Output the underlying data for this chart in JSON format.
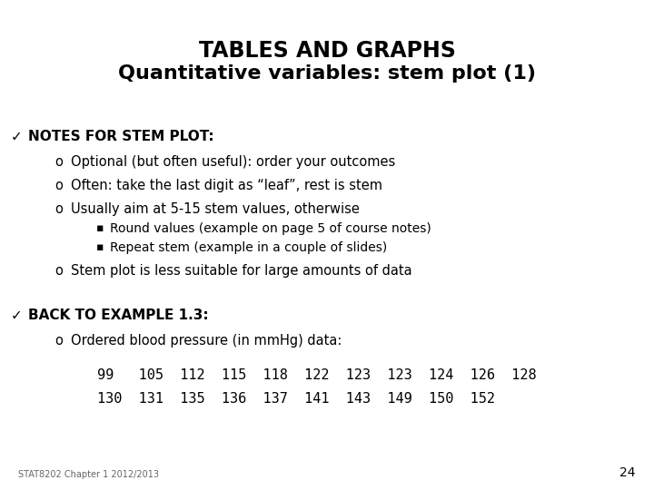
{
  "title_line1": "TABLES AND GRAPHS",
  "title_line2": "Quantitative variables: stem plot (1)",
  "background_color": "#ffffff",
  "text_color": "#000000",
  "footer_text": "STAT8202 Chapter 1 2012/2013",
  "page_number": "24",
  "title1_fs": 17,
  "title2_fs": 16,
  "header_fs": 11,
  "body_fs": 10.5,
  "sub_fs": 10,
  "data_fs": 11,
  "footer_fs": 7,
  "pagenum_fs": 10,
  "items": [
    {
      "type": "check",
      "text": "NOTES FOR STEM PLOT:",
      "fx": 0.038,
      "fy": 0.735,
      "bold": true
    },
    {
      "type": "o",
      "text": "Optional (but often useful): order your outcomes",
      "fx": 0.105,
      "fy": 0.683
    },
    {
      "type": "o",
      "text": "Often: take the last digit as “leaf”, rest is stem",
      "fx": 0.105,
      "fy": 0.635
    },
    {
      "type": "o",
      "text": "Usually aim at 5-15 stem values, otherwise",
      "fx": 0.105,
      "fy": 0.587
    },
    {
      "type": "sq",
      "text": "Round values (example on page 5 of course notes)",
      "fx": 0.165,
      "fy": 0.546
    },
    {
      "type": "sq",
      "text": "Repeat stem (example in a couple of slides)",
      "fx": 0.165,
      "fy": 0.508
    },
    {
      "type": "o",
      "text": "Stem plot is less suitable for large amounts of data",
      "fx": 0.105,
      "fy": 0.462
    },
    {
      "type": "check",
      "text": "BACK TO EXAMPLE 1.3:",
      "fx": 0.038,
      "fy": 0.37,
      "bold": true
    },
    {
      "type": "o",
      "text": "Ordered blood pressure (in mmHg) data:",
      "fx": 0.105,
      "fy": 0.318
    },
    {
      "type": "data",
      "text": "99   105  112  115  118  122  123  123  124  126  128",
      "fx": 0.148,
      "fy": 0.248
    },
    {
      "type": "data",
      "text": "130  131  135  136  137  141  143  149  150  152",
      "fx": 0.148,
      "fy": 0.2
    }
  ]
}
